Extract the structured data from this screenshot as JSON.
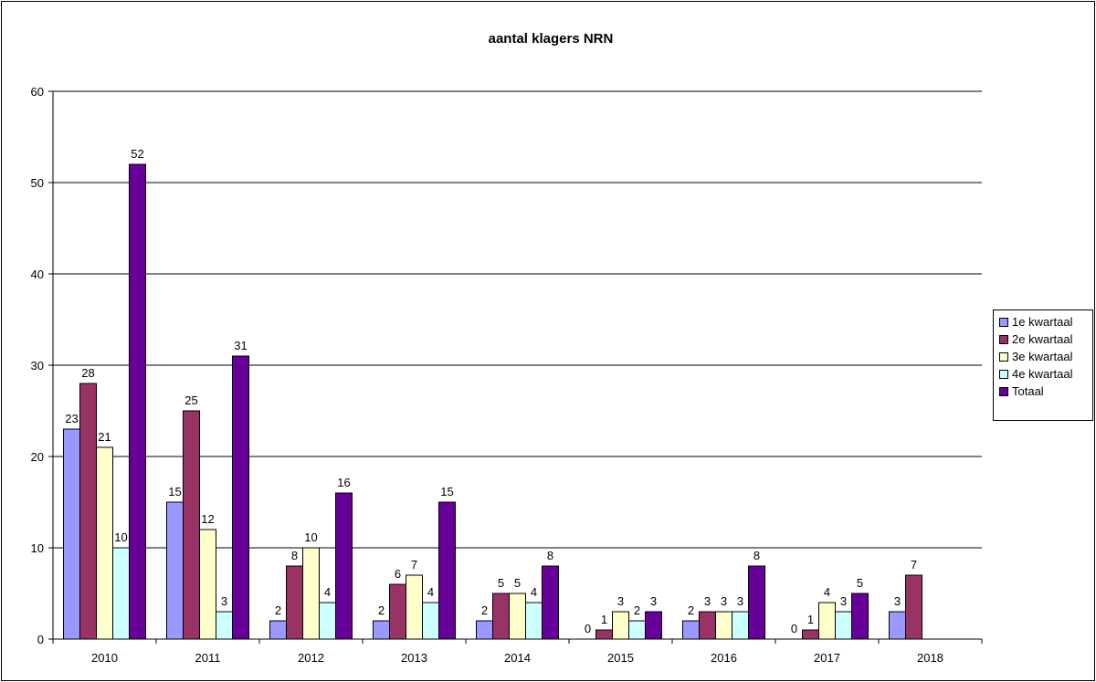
{
  "chart_data": {
    "type": "bar",
    "title": "aantal klagers NRN",
    "xlabel": "",
    "ylabel": "",
    "ylim": [
      0,
      60
    ],
    "yticks": [
      0,
      10,
      20,
      30,
      40,
      50,
      60
    ],
    "grid": true,
    "legend_position": "right",
    "categories": [
      "2010",
      "2011",
      "2012",
      "2013",
      "2014",
      "2015",
      "2016",
      "2017",
      "2018"
    ],
    "series": [
      {
        "name": "1e kwartaal",
        "color": "#9999ff",
        "values": [
          23,
          15,
          2,
          2,
          2,
          0,
          2,
          0,
          3
        ]
      },
      {
        "name": "2e kwartaal",
        "color": "#993366",
        "values": [
          28,
          25,
          8,
          6,
          5,
          1,
          3,
          1,
          7
        ]
      },
      {
        "name": "3e kwartaal",
        "color": "#ffffcc",
        "values": [
          21,
          12,
          10,
          7,
          5,
          3,
          3,
          4,
          null
        ]
      },
      {
        "name": "4e kwartaal",
        "color": "#ccffff",
        "values": [
          10,
          3,
          4,
          4,
          4,
          2,
          3,
          3,
          null
        ]
      },
      {
        "name": "Totaal",
        "color": "#660099",
        "values": [
          52,
          31,
          16,
          15,
          8,
          3,
          8,
          5,
          null
        ]
      }
    ]
  }
}
